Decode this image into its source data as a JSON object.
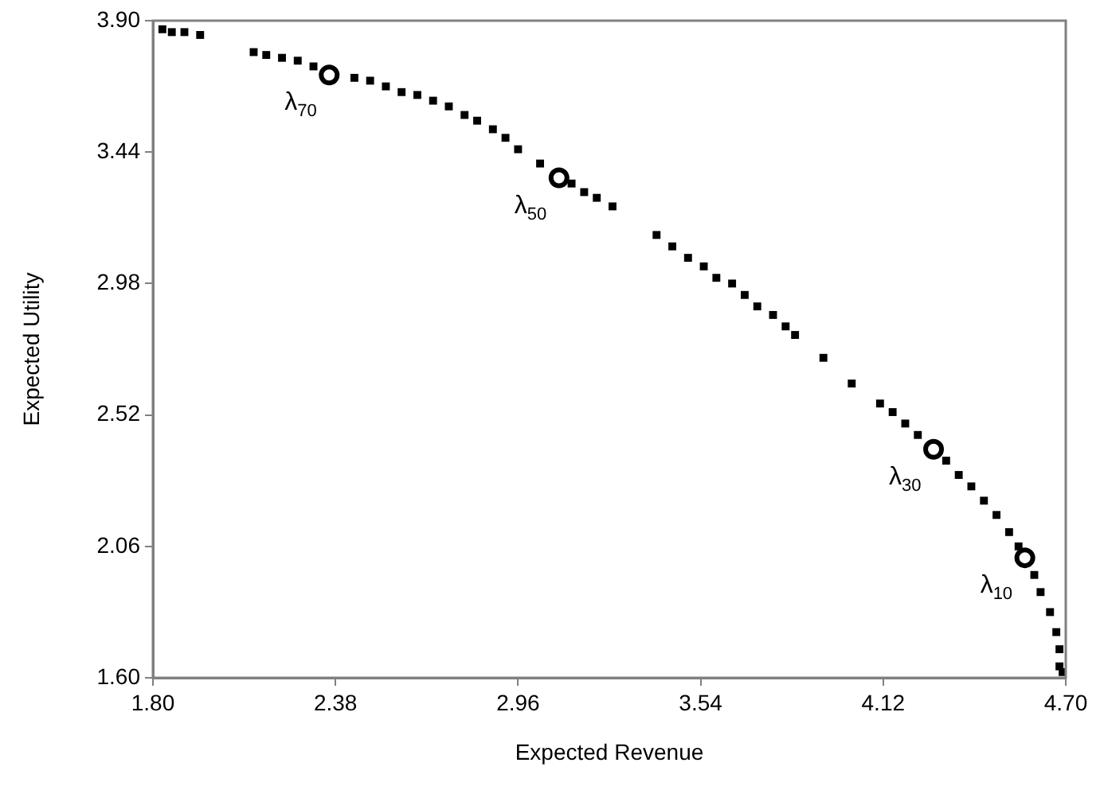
{
  "chart_data": {
    "type": "scatter",
    "xlabel": "Expected Revenue",
    "ylabel": "Expected Utility",
    "xlim": [
      1.8,
      4.7
    ],
    "xticks": [
      {
        "value": 1.8,
        "label": "1.80"
      },
      2.38,
      2.96,
      3.54,
      4.12,
      {
        "value": 4.7,
        "label": "4.70"
      }
    ],
    "ylim": [
      1.6,
      3.9
    ],
    "yticks": [
      {
        "value": 1.6,
        "label": "1.60"
      },
      2.06,
      2.52,
      2.98,
      3.44,
      {
        "value": 3.9,
        "label": "3.90"
      }
    ],
    "grid": false,
    "legend": false,
    "marker": "square",
    "series": [
      {
        "color": "#000000",
        "x": [
          1.83,
          1.86,
          1.9,
          1.95,
          2.12,
          2.16,
          2.21,
          2.26,
          2.31,
          2.44,
          2.49,
          2.54,
          2.59,
          2.64,
          2.69,
          2.74,
          2.79,
          2.83,
          2.88,
          2.92,
          2.96,
          3.03,
          3.13,
          3.17,
          3.21,
          3.26,
          3.4,
          3.45,
          3.5,
          3.55,
          3.59,
          3.64,
          3.68,
          3.72,
          3.77,
          3.81,
          3.84,
          3.93,
          4.02,
          4.11,
          4.15,
          4.19,
          4.23,
          4.32,
          4.36,
          4.4,
          4.44,
          4.48,
          4.52,
          4.55,
          4.6,
          4.62,
          4.65,
          4.67,
          4.68,
          4.68,
          4.69
        ],
        "values": [
          3.87,
          3.86,
          3.86,
          3.85,
          3.79,
          3.78,
          3.77,
          3.76,
          3.74,
          3.7,
          3.69,
          3.67,
          3.65,
          3.64,
          3.62,
          3.6,
          3.57,
          3.55,
          3.52,
          3.49,
          3.45,
          3.4,
          3.33,
          3.3,
          3.28,
          3.25,
          3.15,
          3.11,
          3.07,
          3.04,
          3.0,
          2.98,
          2.94,
          2.9,
          2.87,
          2.83,
          2.8,
          2.72,
          2.63,
          2.56,
          2.53,
          2.49,
          2.45,
          2.36,
          2.31,
          2.27,
          2.22,
          2.17,
          2.11,
          2.06,
          1.96,
          1.9,
          1.83,
          1.76,
          1.7,
          1.64,
          1.62
        ]
      },
      {
        "color": "#000000",
        "marker": "circle",
        "x": [
          2.36,
          3.09,
          4.28,
          4.57
        ],
        "values": [
          3.71,
          3.35,
          2.4,
          2.02
        ]
      }
    ],
    "annotations": [
      {
        "text": "λ$_{70}$",
        "x": 2.36,
        "y": 3.71
      },
      {
        "text": "λ$_{50}$",
        "x": 3.09,
        "y": 3.35
      },
      {
        "text": "λ$_{30}$",
        "x": 4.28,
        "y": 2.4
      },
      {
        "text": "λ$_{10}$",
        "x": 4.57,
        "y": 2.02
      }
    ]
  }
}
